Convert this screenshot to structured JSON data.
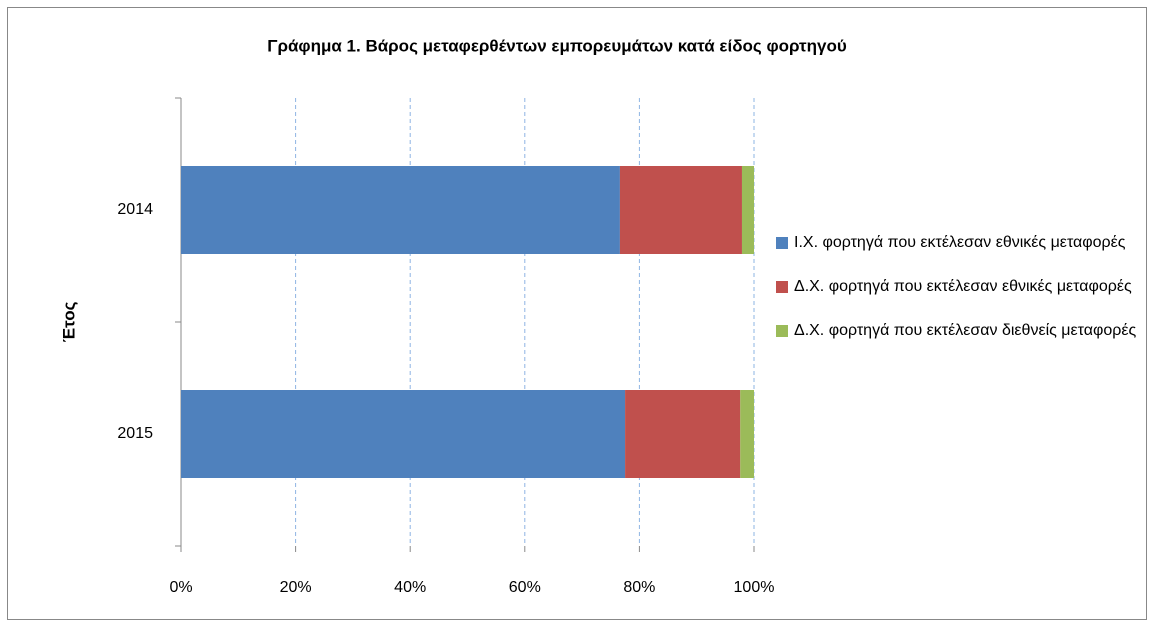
{
  "chart_data": {
    "type": "stacked_bar_horizontal",
    "title": "Γράφημα 1. Βάρος μεταφερθέντων εμπορευμάτων κατά είδος φορτηγού",
    "y_label": "Έτος",
    "categories": [
      "2014",
      "2015"
    ],
    "series": [
      {
        "name": "Ι.Χ. φορτηγά που εκτέλεσαν εθνικές μεταφορές",
        "color": "#4f81bd",
        "values": [
          76.6,
          77.5
        ]
      },
      {
        "name": "Δ.Χ. φορτηγά που εκτέλεσαν εθνικές μεταφορές",
        "color": "#c0504d",
        "values": [
          21.3,
          20.1
        ]
      },
      {
        "name": "Δ.Χ. φορτηγά που εκτέλεσαν διεθνείς μεταφορές",
        "color": "#9bbb59",
        "values": [
          2.1,
          2.4
        ]
      }
    ],
    "xlim": [
      0,
      100
    ],
    "xticks": [
      {
        "value": 0,
        "label": "0%"
      },
      {
        "value": 20,
        "label": "20%"
      },
      {
        "value": 40,
        "label": "40%"
      },
      {
        "value": 60,
        "label": "60%"
      },
      {
        "value": 80,
        "label": "80%"
      },
      {
        "value": 100,
        "label": "100%"
      }
    ],
    "grid": true,
    "legend": "right"
  }
}
